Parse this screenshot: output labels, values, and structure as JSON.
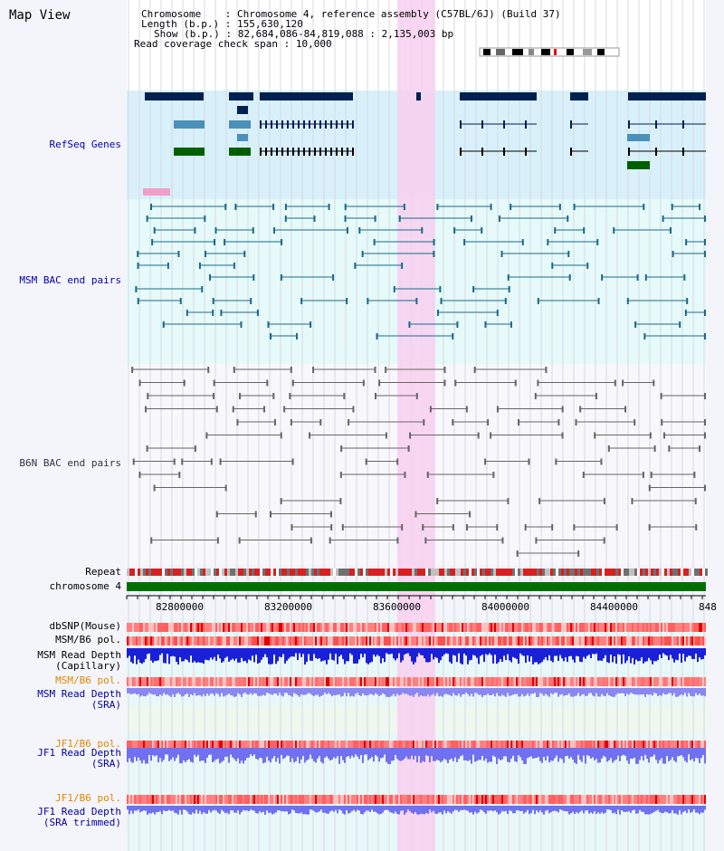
{
  "title": "Map View",
  "info": {
    "chromosome_key": "Chromosome",
    "chromosome_val": "Chromosome 4, reference assembly (C57BL/6J) (Build 37)",
    "length_key": "Length (b.p.)",
    "length_val": "155,630,120",
    "show_key": "Show (b.p.)",
    "show_val": "82,684,086-84,819,088 : 2,135,003 bp",
    "coverage_key": "Read coverage check span",
    "coverage_val": "10,000"
  },
  "tracks": {
    "refseq": "RefSeq Genes",
    "msm_bac": "MSM BAC end pairs",
    "b6n_bac": "B6N BAC end pairs",
    "repeat": "Repeat",
    "chromosome": "chromosome 4",
    "dbsnp": "dbSNP(Mouse)",
    "msm_b6_pol": "MSM/B6 pol.",
    "msm_depth_cap_1": "MSM Read Depth",
    "msm_depth_cap_2": "(Capillary)",
    "msm_b6_pol_sra": "MSM/B6 pol.",
    "msm_depth_sra_1": "MSM Read Depth",
    "msm_depth_sra_2": "(SRA)",
    "jf1_b6_pol": "JF1/B6 pol.",
    "jf1_depth_1": "JF1 Read Depth",
    "jf1_depth_2": "(SRA)",
    "jf1_b6_pol_t": "JF1/B6 pol.",
    "jf1_depth_t_1": "JF1 Read Depth",
    "jf1_depth_t_2": "(SRA trimmed)"
  },
  "axis_ticks": [
    "82800000",
    "83200000",
    "83600000",
    "84000000",
    "84400000",
    "848"
  ],
  "colors": {
    "highlight": "#f8d0f0",
    "refseq_bg": "#d8f0fa",
    "msm_bg": "#e6fafa",
    "b6n_bg": "#f4f4fb",
    "gene_navy": "#002050",
    "gene_teal": "#4a90b8",
    "gene_green": "#006000",
    "chrom_green": "#007000",
    "depth_blue": "#2020e0",
    "depth_lavender": "#8080f0",
    "pol_red": "#ff5050"
  }
}
